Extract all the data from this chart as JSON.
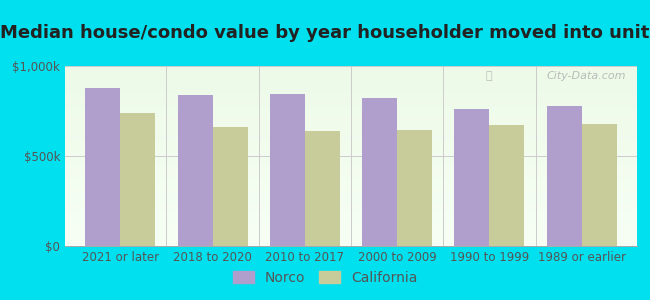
{
  "title": "Median house/condo value by year householder moved into unit",
  "categories": [
    "2021 or later",
    "2018 to 2020",
    "2010 to 2017",
    "2000 to 2009",
    "1990 to 1999",
    "1989 or earlier"
  ],
  "norco_values": [
    880000,
    840000,
    845000,
    825000,
    760000,
    780000
  ],
  "california_values": [
    740000,
    660000,
    640000,
    645000,
    670000,
    680000
  ],
  "norco_color": "#b09fcc",
  "california_color": "#c8cc9a",
  "background_outer": "#00e0ee",
  "background_inner": "#f4fbf0",
  "ylim": [
    0,
    1000000
  ],
  "ytick_labels": [
    "$0",
    "$500k",
    "$1,000k"
  ],
  "ytick_values": [
    0,
    500000,
    1000000
  ],
  "legend_labels": [
    "Norco",
    "California"
  ],
  "bar_width": 0.38,
  "watermark": "City-Data.com",
  "title_fontsize": 13,
  "tick_fontsize": 8.5,
  "legend_fontsize": 10
}
